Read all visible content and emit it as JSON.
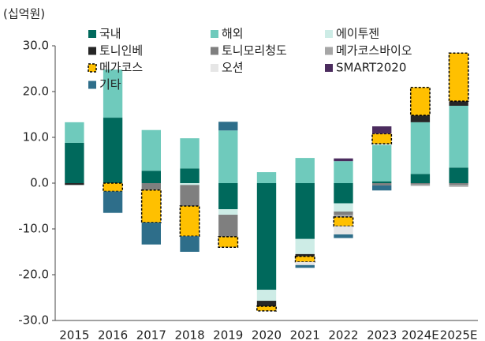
{
  "chart_data": {
    "type": "stacked_bar",
    "y_label": "(십억원)",
    "categories": [
      "2015",
      "2016",
      "2017",
      "2018",
      "2019",
      "2020",
      "2021",
      "2022",
      "2023",
      "2024E",
      "2025E"
    ],
    "series": [
      {
        "name": "국내",
        "color": "#00695c",
        "values": [
          8.8,
          14.3,
          2.7,
          3.2,
          -5.7,
          -23.3,
          -12.2,
          -4.4,
          0.4,
          2.0,
          3.4
        ]
      },
      {
        "name": "해외",
        "color": "#6fcabc",
        "values": [
          4.5,
          10.5,
          8.9,
          6.6,
          11.5,
          2.4,
          5.5,
          4.8,
          7.9,
          11.3,
          13.5
        ]
      },
      {
        "name": "에이투젠",
        "color": "#cdece6",
        "values": [
          0,
          0,
          0,
          -0.4,
          -1.2,
          -2.4,
          -3.3,
          -1.8,
          0.3,
          0,
          0
        ]
      },
      {
        "name": "토니인베",
        "color": "#262626",
        "values": [
          -0.4,
          0,
          0,
          0,
          0,
          -1.2,
          -0.5,
          0,
          0,
          1.5,
          1.0
        ]
      },
      {
        "name": "토니모리청도",
        "color": "#7f7f7f",
        "values": [
          0,
          0,
          -1.5,
          -4.6,
          -4.8,
          0,
          0,
          -0.7,
          -0.5,
          -0.3,
          -0.4
        ]
      },
      {
        "name": "메가코스바이오",
        "color": "#a6a6a6",
        "values": [
          0,
          0,
          0,
          0,
          0,
          0,
          0,
          -0.5,
          0,
          -0.3,
          -0.4
        ]
      },
      {
        "name": "메가코스",
        "color": "#ffc000",
        "border": "dashed",
        "values": [
          0,
          -1.8,
          -7.1,
          -6.6,
          -2.3,
          -1.0,
          -1.2,
          -2.0,
          2.2,
          6.1,
          10.5
        ]
      },
      {
        "name": "오션",
        "color": "#e6e6e6",
        "values": [
          0,
          0,
          0,
          0,
          0,
          0,
          -0.7,
          -1.8,
          0,
          0,
          0
        ]
      },
      {
        "name": "SMART2020",
        "color": "#4b2c5e",
        "values": [
          0,
          0,
          0,
          0,
          0,
          0,
          0,
          0.6,
          1.6,
          0,
          0
        ]
      },
      {
        "name": "기타",
        "color": "#2e6e8a",
        "values": [
          0,
          -4.7,
          -4.8,
          -3.4,
          1.9,
          0,
          -0.6,
          -0.8,
          -1.1,
          0,
          0
        ]
      }
    ],
    "ylim": [
      -30,
      30
    ],
    "yticks": [
      {
        "value": -30,
        "label": "-30.0"
      },
      {
        "value": -20,
        "label": "-20.0"
      },
      {
        "value": -10,
        "label": "-10.0"
      },
      {
        "value": 0,
        "label": "0.0"
      },
      {
        "value": 10,
        "label": "10.0"
      },
      {
        "value": 20,
        "label": "20.0"
      },
      {
        "value": 30,
        "label": "30.0"
      }
    ],
    "legend": "top"
  }
}
